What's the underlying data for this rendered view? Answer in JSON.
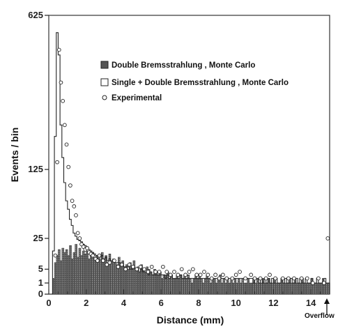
{
  "chart_data": {
    "type": "bar",
    "xlabel": "Distance  (mm)",
    "ylabel": "Events / bin",
    "xlim": [
      0,
      15
    ],
    "ylim_sqrt": [
      0,
      625
    ],
    "y_scale": "sqrt",
    "x_ticks": [
      "0",
      "2",
      "4",
      "6",
      "8",
      "10",
      "12",
      "14"
    ],
    "x_tick_values": [
      0,
      2,
      4,
      6,
      8,
      10,
      12,
      14
    ],
    "y_ticks": [
      "0",
      "1",
      "5",
      "25",
      "125",
      "625"
    ],
    "y_tick_values": [
      0,
      1,
      5,
      25,
      125,
      625
    ],
    "overflow_label": "Overflow",
    "bin_width": 0.1,
    "legend": [
      {
        "name": "Double Bremsstrahlung , Monte Carlo",
        "marker": "filled-square"
      },
      {
        "name": "Single + Double Bremsstrahlung , Monte Carlo",
        "marker": "open-square"
      },
      {
        "name": "Experimental",
        "marker": "open-circle"
      }
    ],
    "series": [
      {
        "name": "Double Bremsstrahlung , Monte Carlo",
        "values": [
          0,
          0,
          2,
          8,
          12,
          16,
          9,
          17,
          14,
          16,
          12,
          19,
          10,
          14,
          20,
          11,
          17,
          12,
          15,
          13,
          15,
          10,
          13,
          14,
          9,
          12,
          11,
          10,
          14,
          10,
          12,
          8,
          13,
          9,
          10,
          8,
          7,
          11,
          8,
          9,
          6,
          7,
          5,
          8,
          6,
          9,
          5,
          6,
          4,
          7,
          5,
          4,
          6,
          5,
          4,
          3,
          5,
          4,
          3,
          4,
          2,
          3,
          3,
          4,
          2,
          3,
          2,
          2,
          3,
          2,
          3,
          2,
          3,
          2,
          3,
          2,
          1,
          2,
          3,
          2,
          3,
          2,
          1,
          2,
          3,
          2,
          1,
          2,
          2,
          1,
          2,
          3,
          1,
          2,
          1,
          2,
          1,
          2,
          1,
          2,
          1,
          2,
          1,
          2,
          1,
          1,
          2,
          1,
          1,
          2,
          1,
          2,
          1,
          1,
          2,
          1,
          1,
          2,
          1,
          1,
          2,
          1,
          1,
          1,
          2,
          1,
          1,
          1,
          2,
          1,
          1,
          2,
          1,
          1,
          1,
          2,
          1,
          1,
          1,
          1,
          2,
          1,
          1,
          1,
          1,
          1,
          2,
          1,
          1,
          1
        ]
      },
      {
        "name": "Single + Double Bremsstrahlung , Monte Carlo",
        "values": [
          0,
          0,
          15,
          200,
          550,
          460,
          230,
          150,
          100,
          70,
          58,
          45,
          38,
          30,
          27,
          24,
          23,
          22,
          20,
          19,
          18,
          16,
          15,
          14,
          13,
          12,
          12,
          11,
          12,
          10,
          11,
          9,
          10,
          9,
          9,
          8,
          8,
          8,
          7,
          7,
          6,
          6,
          6,
          5,
          5,
          6,
          5,
          5,
          4,
          5,
          4,
          4,
          4,
          3,
          4,
          3,
          3,
          3,
          3,
          3,
          3,
          3,
          2,
          3,
          2,
          3,
          2,
          2,
          2,
          2,
          3,
          2,
          2,
          2,
          2,
          2,
          2,
          2,
          2,
          2,
          2,
          2,
          2,
          2,
          2,
          2,
          2,
          2,
          2,
          2,
          2,
          2,
          2,
          2,
          2,
          2,
          2,
          2,
          2,
          2,
          2,
          2,
          2,
          2,
          2,
          2,
          2,
          2,
          2,
          1,
          2,
          2,
          1,
          2,
          1,
          2,
          1,
          2,
          1,
          2,
          1,
          2,
          1,
          1,
          2,
          1,
          2,
          1,
          1,
          2,
          1,
          1,
          2,
          1,
          2,
          1,
          1,
          2,
          1,
          1,
          2,
          1,
          1,
          2,
          1,
          1,
          1,
          2,
          1,
          1
        ]
      },
      {
        "name": "Experimental",
        "points": [
          [
            0.35,
            12
          ],
          [
            0.45,
            140
          ],
          [
            0.55,
            480
          ],
          [
            0.65,
            360
          ],
          [
            0.75,
            300
          ],
          [
            0.85,
            230
          ],
          [
            0.95,
            180
          ],
          [
            1.05,
            130
          ],
          [
            1.15,
            95
          ],
          [
            1.25,
            70
          ],
          [
            1.35,
            62
          ],
          [
            1.45,
            50
          ],
          [
            1.55,
            30
          ],
          [
            1.65,
            25
          ],
          [
            1.75,
            20
          ],
          [
            1.85,
            18
          ],
          [
            1.95,
            16
          ],
          [
            2.05,
            17
          ],
          [
            2.15,
            14
          ],
          [
            2.25,
            13
          ],
          [
            2.35,
            12
          ],
          [
            2.5,
            10
          ],
          [
            2.6,
            9
          ],
          [
            2.7,
            12
          ],
          [
            2.9,
            9
          ],
          [
            3.1,
            7
          ],
          [
            3.25,
            8
          ],
          [
            3.5,
            9
          ],
          [
            3.7,
            6
          ],
          [
            3.9,
            7
          ],
          [
            4.1,
            5
          ],
          [
            4.3,
            7
          ],
          [
            4.5,
            6
          ],
          [
            4.7,
            5
          ],
          [
            4.9,
            6
          ],
          [
            5.1,
            5
          ],
          [
            5.3,
            4
          ],
          [
            5.5,
            6
          ],
          [
            5.7,
            4
          ],
          [
            5.9,
            4
          ],
          [
            6.1,
            6
          ],
          [
            6.3,
            4
          ],
          [
            6.5,
            3
          ],
          [
            6.7,
            4
          ],
          [
            6.9,
            3
          ],
          [
            7.1,
            5
          ],
          [
            7.3,
            3
          ],
          [
            7.5,
            4
          ],
          [
            7.7,
            5
          ],
          [
            7.9,
            3
          ],
          [
            8.1,
            3
          ],
          [
            8.3,
            4
          ],
          [
            8.5,
            3
          ],
          [
            8.7,
            2
          ],
          [
            8.9,
            3
          ],
          [
            9.1,
            2
          ],
          [
            9.3,
            3
          ],
          [
            9.5,
            2
          ],
          [
            9.8,
            2
          ],
          [
            10.0,
            3
          ],
          [
            10.2,
            4
          ],
          [
            10.5,
            2
          ],
          [
            10.8,
            3
          ],
          [
            11.0,
            2
          ],
          [
            11.3,
            2
          ],
          [
            11.6,
            2
          ],
          [
            11.8,
            3
          ],
          [
            12.1,
            2
          ],
          [
            12.5,
            2
          ],
          [
            12.8,
            2
          ],
          [
            13.1,
            2
          ],
          [
            13.5,
            2
          ],
          [
            13.8,
            2
          ],
          [
            14.1,
            1
          ],
          [
            14.4,
            2
          ],
          [
            14.7,
            1
          ],
          [
            14.9,
            25
          ]
        ]
      }
    ]
  }
}
